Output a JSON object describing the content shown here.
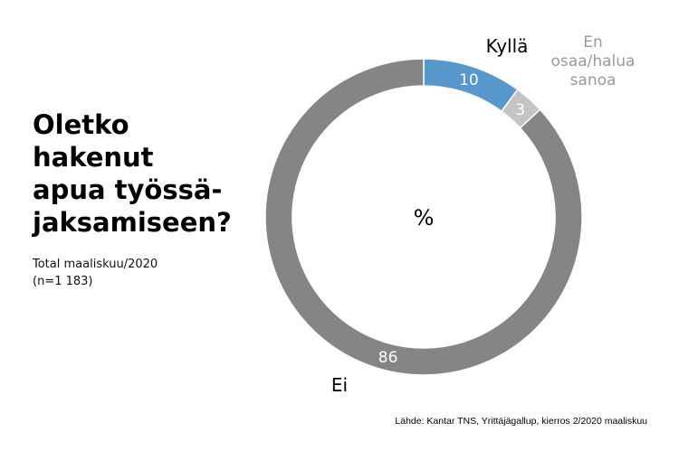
{
  "title": "Oletko\nhakenut\napua työssä-\njaksamiseen?",
  "subtitle": "Total maaliskuu/2020\n(n=1 183)",
  "source": "Lähde: Kantar TNS, Yrittäjägallup, kierros 2/2020 maaliskuu",
  "chart_data": {
    "type": "pie",
    "center_label": "%",
    "slices": [
      {
        "name": "Kyllä",
        "value": 10,
        "color": "#5797cc",
        "text_color": "#ffffff",
        "label_color": "#000000"
      },
      {
        "name": "En\nosaa/halua\nsanoa",
        "value": 3,
        "color": "#c4c4c4",
        "text_color": "#ffffff",
        "label_color": "#9a9a9a"
      },
      {
        "name": "Ei",
        "value": 86,
        "color": "#858585",
        "text_color": "#ffffff",
        "label_color": "#000000"
      }
    ]
  }
}
